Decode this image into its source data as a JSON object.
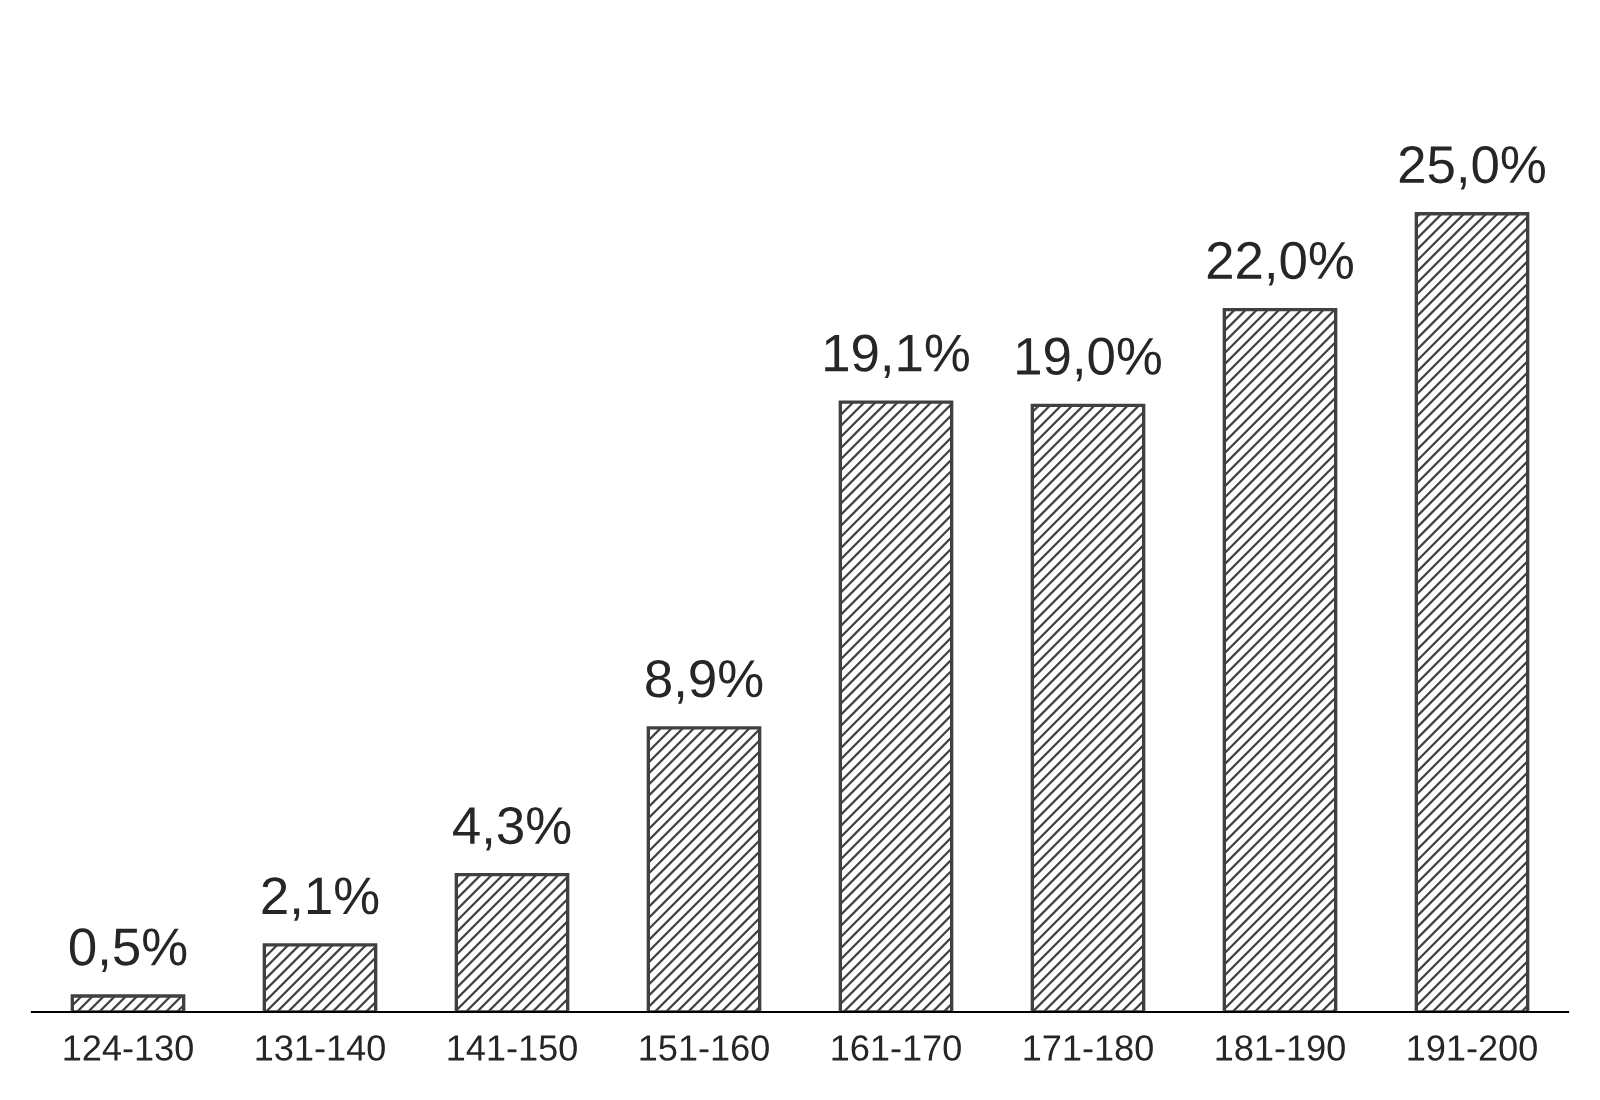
{
  "chart_data": {
    "type": "bar",
    "categories": [
      "124-130",
      "131-140",
      "141-150",
      "151-160",
      "161-170",
      "171-180",
      "181-190",
      "191-200"
    ],
    "values": [
      0.5,
      2.1,
      4.3,
      8.9,
      19.1,
      19.0,
      22.0,
      25.0
    ],
    "value_labels": [
      "0,5%",
      "2,1%",
      "4,3%",
      "8,9%",
      "19,1%",
      "19,0%",
      "22,0%",
      "25,0%"
    ],
    "color": "#404040",
    "grid": false
  }
}
